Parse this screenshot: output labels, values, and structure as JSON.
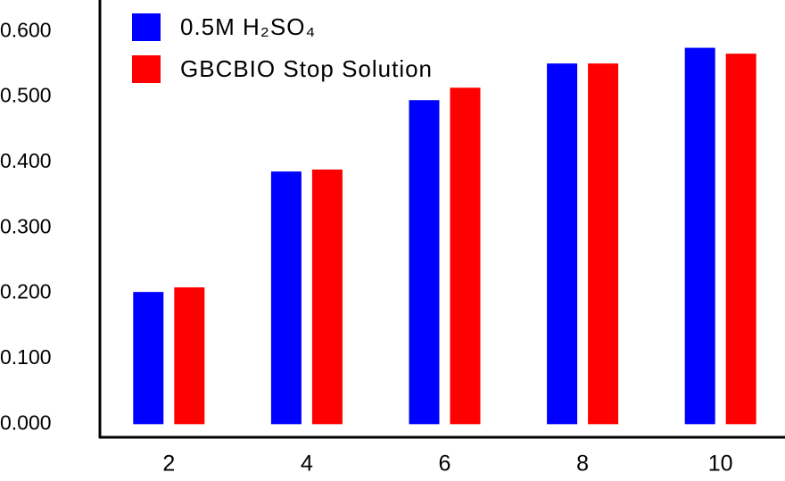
{
  "chart_data": {
    "type": "bar",
    "categories": [
      "2",
      "4",
      "6",
      "8",
      "10"
    ],
    "series": [
      {
        "name": "0.5M H₂SO₄",
        "color": "#0000ff",
        "values": [
          0.202,
          0.386,
          0.495,
          0.551,
          0.575
        ]
      },
      {
        "name": "GBCBIO Stop Solution",
        "color": "#ff0000",
        "values": [
          0.209,
          0.389,
          0.514,
          0.551,
          0.566
        ]
      }
    ],
    "ylim": [
      -0.02,
      0.648
    ],
    "yticks": [
      {
        "value": 0,
        "label": "0.000"
      },
      {
        "value": 0.1,
        "label": "0.100"
      },
      {
        "value": 0.2,
        "label": "0.200"
      },
      {
        "value": 0.3,
        "label": "0.300"
      },
      {
        "value": 0.4,
        "label": "0.400"
      },
      {
        "value": 0.5,
        "label": "0.500"
      },
      {
        "value": 0.6,
        "label": "0.600"
      }
    ],
    "legend": "top-left"
  }
}
